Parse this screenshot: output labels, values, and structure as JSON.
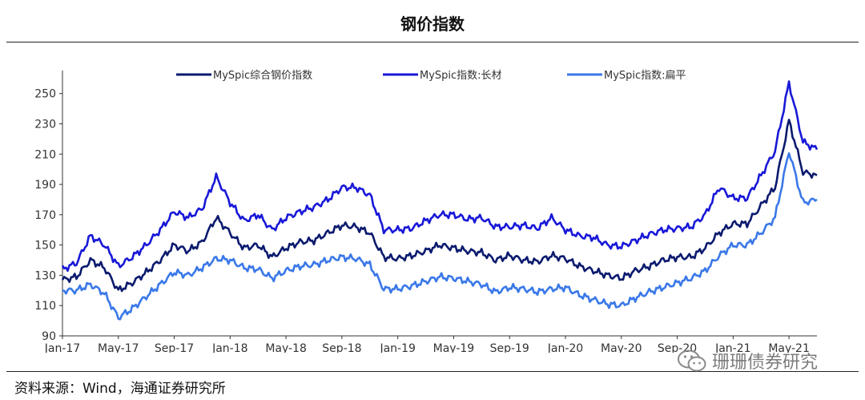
{
  "title": "钢价指数",
  "source": "资料来源：Wind，海通证券研究所",
  "watermark": "珊珊债券研究",
  "chart_data": {
    "type": "line",
    "x_ticks": [
      "Jan-17",
      "May-17",
      "Sep-17",
      "Jan-18",
      "May-18",
      "Sep-18",
      "Jan-19",
      "May-19",
      "Sep-19",
      "Jan-20",
      "May-20",
      "Sep-20",
      "Jan-21",
      "May-21"
    ],
    "y_ticks": [
      90,
      110,
      130,
      150,
      170,
      190,
      210,
      230,
      250
    ],
    "ylim": [
      90,
      262
    ],
    "x_start": "2017-01",
    "x_end": "2021-07",
    "legend_position": "top",
    "series": [
      {
        "name": "MySpic综合钢价指数",
        "color": "#0b1a6e",
        "points": [
          [
            "2017-01",
            127
          ],
          [
            "2017-02",
            129
          ],
          [
            "2017-03",
            140
          ],
          [
            "2017-04",
            135
          ],
          [
            "2017-05",
            120
          ],
          [
            "2017-06",
            125
          ],
          [
            "2017-07",
            132
          ],
          [
            "2017-08",
            140
          ],
          [
            "2017-09",
            150
          ],
          [
            "2017-10",
            146
          ],
          [
            "2017-11",
            152
          ],
          [
            "2017-12",
            168
          ],
          [
            "2018-01",
            158
          ],
          [
            "2018-02",
            148
          ],
          [
            "2018-03",
            150
          ],
          [
            "2018-04",
            142
          ],
          [
            "2018-05",
            148
          ],
          [
            "2018-06",
            152
          ],
          [
            "2018-07",
            153
          ],
          [
            "2018-08",
            158
          ],
          [
            "2018-09",
            163
          ],
          [
            "2018-10",
            162
          ],
          [
            "2018-11",
            158
          ],
          [
            "2018-12",
            142
          ],
          [
            "2019-01",
            141
          ],
          [
            "2019-02",
            143
          ],
          [
            "2019-03",
            146
          ],
          [
            "2019-04",
            150
          ],
          [
            "2019-05",
            148
          ],
          [
            "2019-06",
            146
          ],
          [
            "2019-07",
            145
          ],
          [
            "2019-08",
            140
          ],
          [
            "2019-09",
            143
          ],
          [
            "2019-10",
            140
          ],
          [
            "2019-11",
            139
          ],
          [
            "2019-12",
            143
          ],
          [
            "2020-01",
            141
          ],
          [
            "2020-02",
            136
          ],
          [
            "2020-03",
            133
          ],
          [
            "2020-04",
            130
          ],
          [
            "2020-05",
            128
          ],
          [
            "2020-06",
            133
          ],
          [
            "2020-07",
            136
          ],
          [
            "2020-08",
            140
          ],
          [
            "2020-09",
            142
          ],
          [
            "2020-10",
            142
          ],
          [
            "2020-11",
            148
          ],
          [
            "2020-12",
            158
          ],
          [
            "2021-01",
            164
          ],
          [
            "2021-02",
            164
          ],
          [
            "2021-03",
            176
          ],
          [
            "2021-04",
            188
          ],
          [
            "2021-05",
            232
          ],
          [
            "2021-06",
            198
          ],
          [
            "2021-07",
            196
          ]
        ]
      },
      {
        "name": "MySpic指数:长材",
        "color": "#1818d8",
        "points": [
          [
            "2017-01",
            134
          ],
          [
            "2017-02",
            138
          ],
          [
            "2017-03",
            156
          ],
          [
            "2017-04",
            150
          ],
          [
            "2017-05",
            136
          ],
          [
            "2017-06",
            142
          ],
          [
            "2017-07",
            150
          ],
          [
            "2017-08",
            160
          ],
          [
            "2017-09",
            172
          ],
          [
            "2017-10",
            168
          ],
          [
            "2017-11",
            174
          ],
          [
            "2017-12",
            195
          ],
          [
            "2018-01",
            178
          ],
          [
            "2018-02",
            166
          ],
          [
            "2018-03",
            170
          ],
          [
            "2018-04",
            160
          ],
          [
            "2018-05",
            168
          ],
          [
            "2018-06",
            172
          ],
          [
            "2018-07",
            175
          ],
          [
            "2018-08",
            180
          ],
          [
            "2018-09",
            188
          ],
          [
            "2018-10",
            188
          ],
          [
            "2018-11",
            183
          ],
          [
            "2018-12",
            160
          ],
          [
            "2019-01",
            160
          ],
          [
            "2019-02",
            161
          ],
          [
            "2019-03",
            166
          ],
          [
            "2019-04",
            170
          ],
          [
            "2019-05",
            170
          ],
          [
            "2019-06",
            167
          ],
          [
            "2019-07",
            168
          ],
          [
            "2019-08",
            162
          ],
          [
            "2019-09",
            162
          ],
          [
            "2019-10",
            163
          ],
          [
            "2019-11",
            161
          ],
          [
            "2019-12",
            168
          ],
          [
            "2020-01",
            160
          ],
          [
            "2020-02",
            156
          ],
          [
            "2020-03",
            155
          ],
          [
            "2020-04",
            150
          ],
          [
            "2020-05",
            149
          ],
          [
            "2020-06",
            153
          ],
          [
            "2020-07",
            157
          ],
          [
            "2020-08",
            160
          ],
          [
            "2020-09",
            161
          ],
          [
            "2020-10",
            162
          ],
          [
            "2020-11",
            170
          ],
          [
            "2020-12",
            188
          ],
          [
            "2021-01",
            181
          ],
          [
            "2021-02",
            181
          ],
          [
            "2021-03",
            196
          ],
          [
            "2021-04",
            212
          ],
          [
            "2021-05",
            257
          ],
          [
            "2021-06",
            218
          ],
          [
            "2021-07",
            213
          ]
        ]
      },
      {
        "name": "MySpic指数:扁平",
        "color": "#3a78e8",
        "points": [
          [
            "2017-01",
            120
          ],
          [
            "2017-02",
            120
          ],
          [
            "2017-03",
            124
          ],
          [
            "2017-04",
            118
          ],
          [
            "2017-05",
            102
          ],
          [
            "2017-06",
            108
          ],
          [
            "2017-07",
            116
          ],
          [
            "2017-08",
            124
          ],
          [
            "2017-09",
            132
          ],
          [
            "2017-10",
            130
          ],
          [
            "2017-11",
            135
          ],
          [
            "2017-12",
            141
          ],
          [
            "2018-01",
            140
          ],
          [
            "2018-02",
            135
          ],
          [
            "2018-03",
            134
          ],
          [
            "2018-04",
            128
          ],
          [
            "2018-05",
            133
          ],
          [
            "2018-06",
            136
          ],
          [
            "2018-07",
            137
          ],
          [
            "2018-08",
            140
          ],
          [
            "2018-09",
            142
          ],
          [
            "2018-10",
            141
          ],
          [
            "2018-11",
            137
          ],
          [
            "2018-12",
            121
          ],
          [
            "2019-01",
            121
          ],
          [
            "2019-02",
            123
          ],
          [
            "2019-03",
            126
          ],
          [
            "2019-04",
            129
          ],
          [
            "2019-05",
            128
          ],
          [
            "2019-06",
            126
          ],
          [
            "2019-07",
            124
          ],
          [
            "2019-08",
            119
          ],
          [
            "2019-09",
            122
          ],
          [
            "2019-10",
            121
          ],
          [
            "2019-11",
            119
          ],
          [
            "2019-12",
            121
          ],
          [
            "2020-01",
            122
          ],
          [
            "2020-02",
            117
          ],
          [
            "2020-03",
            114
          ],
          [
            "2020-04",
            111
          ],
          [
            "2020-05",
            110
          ],
          [
            "2020-06",
            115
          ],
          [
            "2020-07",
            119
          ],
          [
            "2020-08",
            122
          ],
          [
            "2020-09",
            125
          ],
          [
            "2020-10",
            128
          ],
          [
            "2020-11",
            133
          ],
          [
            "2020-12",
            143
          ],
          [
            "2021-01",
            150
          ],
          [
            "2021-02",
            150
          ],
          [
            "2021-03",
            158
          ],
          [
            "2021-04",
            168
          ],
          [
            "2021-05",
            212
          ],
          [
            "2021-06",
            178
          ],
          [
            "2021-07",
            180
          ]
        ]
      }
    ]
  }
}
